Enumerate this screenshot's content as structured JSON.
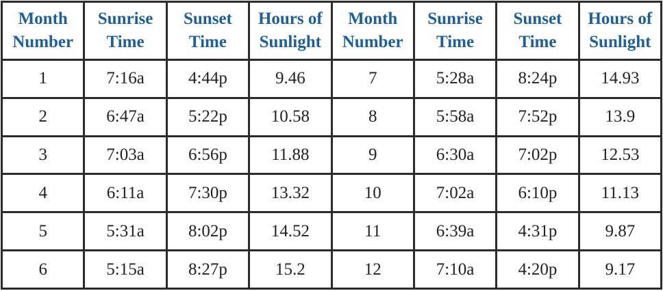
{
  "table": {
    "headers": [
      "Month Number",
      "Sunrise Time",
      "Sunset Time",
      "Hours of Sunlight",
      "Month Number",
      "Sunrise Time",
      "Sunset Time",
      "Hours of Sunlight"
    ],
    "rows": [
      [
        1,
        "7:16a",
        "4:44p",
        9.46,
        7,
        "5:28a",
        "8:24p",
        14.93
      ],
      [
        2,
        "6:47a",
        "5:22p",
        10.58,
        8,
        "5:58a",
        "7:52p",
        13.9
      ],
      [
        3,
        "7:03a",
        "6:56p",
        11.88,
        9,
        "6:30a",
        "7:02p",
        12.53
      ],
      [
        4,
        "6:11a",
        "7:30p",
        13.32,
        10,
        "7:02a",
        "6:10p",
        11.13
      ],
      [
        5,
        "5:31a",
        "8:02p",
        14.52,
        11,
        "6:39a",
        "4:31p",
        9.87
      ],
      [
        6,
        "5:15a",
        "8:27p",
        15.2,
        12,
        "7:10a",
        "4:20p",
        9.17
      ]
    ]
  }
}
